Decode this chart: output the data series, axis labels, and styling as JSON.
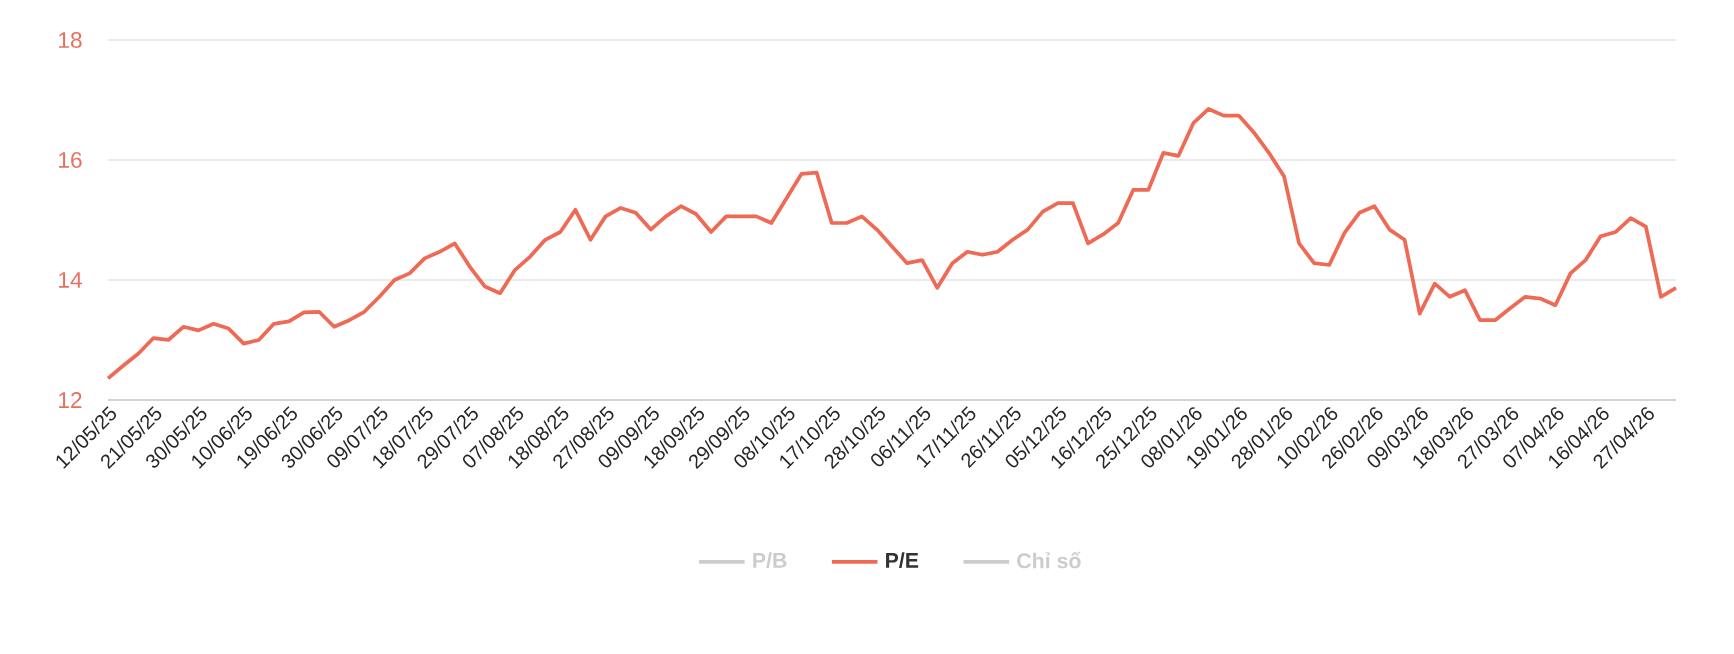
{
  "chart_data": {
    "type": "line",
    "categories": [
      "12/05/25",
      null,
      null,
      "21/05/25",
      null,
      null,
      "30/05/25",
      null,
      null,
      "10/06/25",
      null,
      null,
      "19/06/25",
      null,
      null,
      "30/06/25",
      null,
      null,
      "09/07/25",
      null,
      null,
      "18/07/25",
      null,
      null,
      "29/07/25",
      null,
      null,
      "07/08/25",
      null,
      null,
      "18/08/25",
      null,
      null,
      "27/08/25",
      null,
      null,
      "09/09/25",
      null,
      null,
      "18/09/25",
      null,
      null,
      "29/09/25",
      null,
      null,
      "08/10/25",
      null,
      null,
      "17/10/25",
      null,
      null,
      "28/10/25",
      null,
      null,
      "06/11/25",
      null,
      null,
      "17/11/25",
      null,
      null,
      "26/11/25",
      null,
      null,
      "05/12/25",
      null,
      null,
      "16/12/25",
      null,
      null,
      "25/12/25",
      null,
      null,
      "08/01/26",
      null,
      null,
      "19/01/26",
      null,
      null,
      "28/01/26",
      null,
      null,
      "10/02/26",
      null,
      null,
      "26/02/26",
      null,
      null,
      "09/03/26",
      null,
      null,
      "18/03/26",
      null,
      null,
      "27/03/26",
      null,
      null,
      "07/04/26",
      null,
      null,
      "16/04/26",
      null,
      null,
      "27/04/26",
      null,
      null
    ],
    "series": [
      {
        "name": "P/B",
        "color": "#cccccc",
        "values": [
          null,
          null,
          null,
          null,
          null,
          null,
          null,
          null,
          null,
          null,
          null,
          null,
          null,
          null,
          null,
          null,
          null,
          null,
          null,
          null,
          null,
          null,
          null,
          null,
          null,
          null,
          null,
          null,
          null,
          null,
          null,
          null,
          null,
          null,
          null,
          null,
          null,
          null,
          null,
          null,
          null,
          null,
          null,
          null,
          null,
          null,
          null,
          null,
          null,
          null,
          null,
          null,
          null,
          null,
          null,
          null,
          null,
          null,
          null,
          null,
          null,
          null,
          null,
          null,
          null,
          null,
          null,
          null,
          null,
          null,
          null,
          null,
          null,
          null,
          null,
          null,
          null,
          null,
          null,
          null,
          null,
          null,
          null,
          null,
          null,
          null,
          null,
          null,
          null,
          null,
          null,
          null,
          null,
          null,
          null,
          null,
          null,
          null,
          null,
          null,
          null,
          null,
          null,
          null,
          null
        ]
      },
      {
        "name": "P/E",
        "color": "#ee6a55",
        "values": [
          12.36,
          12.57,
          12.77,
          13.03,
          13.0,
          13.22,
          13.16,
          13.27,
          13.19,
          12.94,
          13.0,
          13.27,
          13.31,
          13.46,
          13.47,
          13.22,
          13.33,
          13.47,
          13.72,
          14.0,
          14.11,
          14.36,
          14.47,
          14.61,
          14.22,
          13.89,
          13.78,
          14.17,
          14.39,
          14.67,
          14.8,
          15.17,
          14.67,
          15.06,
          15.2,
          15.12,
          14.84,
          15.06,
          15.23,
          15.1,
          14.8,
          15.06,
          15.06,
          15.06,
          14.95,
          15.36,
          15.77,
          15.79,
          14.95,
          14.95,
          15.06,
          14.84,
          14.56,
          14.28,
          14.33,
          13.87,
          14.28,
          14.47,
          14.42,
          14.47,
          14.67,
          14.84,
          15.14,
          15.28,
          15.28,
          14.61,
          14.76,
          14.95,
          15.5,
          15.5,
          16.12,
          16.07,
          16.62,
          16.85,
          16.74,
          16.74,
          16.46,
          16.12,
          15.73,
          14.61,
          14.28,
          14.25,
          14.78,
          15.12,
          15.23,
          14.84,
          14.67,
          13.44,
          13.94,
          13.72,
          13.83,
          13.33,
          13.33,
          13.53,
          13.72,
          13.69,
          13.58,
          14.11,
          14.33,
          14.73,
          14.8,
          15.03,
          14.89,
          13.72,
          13.87
        ]
      },
      {
        "name": "Chỉ số",
        "color": "#cccccc",
        "values": [
          null,
          null,
          null,
          null,
          null,
          null,
          null,
          null,
          null,
          null,
          null,
          null,
          null,
          null,
          null,
          null,
          null,
          null,
          null,
          null,
          null,
          null,
          null,
          null,
          null,
          null,
          null,
          null,
          null,
          null,
          null,
          null,
          null,
          null,
          null,
          null,
          null,
          null,
          null,
          null,
          null,
          null,
          null,
          null,
          null,
          null,
          null,
          null,
          null,
          null,
          null,
          null,
          null,
          null,
          null,
          null,
          null,
          null,
          null,
          null,
          null,
          null,
          null,
          null,
          null,
          null,
          null,
          null,
          null,
          null,
          null,
          null,
          null,
          null,
          null,
          null,
          null,
          null,
          null,
          null,
          null,
          null,
          null,
          null,
          null,
          null,
          null,
          null,
          null,
          null,
          null,
          null,
          null,
          null,
          null,
          null,
          null,
          null,
          null,
          null,
          null,
          null,
          null,
          null,
          null
        ]
      }
    ],
    "ylim": [
      12,
      18
    ],
    "yticks": [
      12,
      14,
      16,
      18
    ],
    "grid": "y",
    "legend": "bottom",
    "marker": "none",
    "line_style": "solid"
  }
}
